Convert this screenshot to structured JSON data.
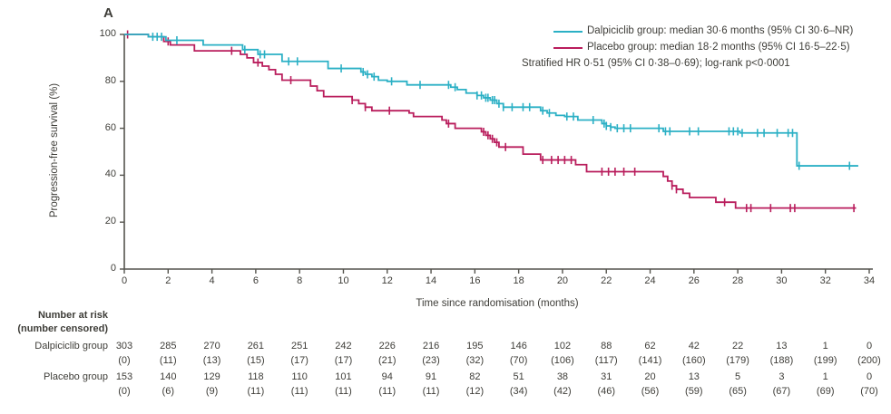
{
  "panel_label": "A",
  "colors": {
    "dalpiciclib": "#2bb0c5",
    "placebo": "#b91d5c",
    "axis": "#55544e",
    "text": "#3e3d38"
  },
  "legend": {
    "items": [
      {
        "label": "Dalpiciclib group: median 30·6 months (95% CI 30·6–NR)",
        "series": "dalpiciclib"
      },
      {
        "label": "Placebo group: median 18·2 months (95% CI 16·5–22·5)",
        "series": "placebo"
      }
    ],
    "note": "Stratified HR 0·51 (95% CI 0·38–0·69); log-rank p<0·0001"
  },
  "chart_data": {
    "type": "line",
    "subtype": "kaplan-meier-step",
    "title": "",
    "xlabel": "Time since randomisation (months)",
    "ylabel": "Progression-free survival (%)",
    "xlim": [
      0,
      34
    ],
    "ylim": [
      0,
      100
    ],
    "xticks": [
      0,
      2,
      4,
      6,
      8,
      10,
      12,
      14,
      16,
      18,
      20,
      22,
      24,
      26,
      28,
      30,
      32,
      34
    ],
    "yticks": [
      0,
      20,
      40,
      60,
      80,
      100
    ],
    "grid": false,
    "legend_position": "top-right",
    "series": [
      {
        "name": "Placebo group",
        "color_key": "placebo",
        "points": [
          [
            0,
            100
          ],
          [
            1.1,
            99
          ],
          [
            1.8,
            97
          ],
          [
            2.1,
            95.5
          ],
          [
            3.2,
            93
          ],
          [
            5.3,
            91.5
          ],
          [
            5.6,
            90
          ],
          [
            5.9,
            88
          ],
          [
            6.3,
            86.5
          ],
          [
            6.6,
            85
          ],
          [
            6.9,
            83
          ],
          [
            7.2,
            80.5
          ],
          [
            8.5,
            78
          ],
          [
            8.8,
            76
          ],
          [
            9.1,
            73.5
          ],
          [
            10.4,
            72
          ],
          [
            10.7,
            70.5
          ],
          [
            11.0,
            69
          ],
          [
            11.3,
            67.5
          ],
          [
            13.0,
            66.5
          ],
          [
            13.2,
            65
          ],
          [
            14.5,
            63.5
          ],
          [
            14.7,
            62
          ],
          [
            15.1,
            60
          ],
          [
            16.3,
            58.5
          ],
          [
            16.5,
            57
          ],
          [
            16.7,
            55.5
          ],
          [
            16.9,
            54
          ],
          [
            17.1,
            52
          ],
          [
            18.2,
            49
          ],
          [
            19.0,
            46.5
          ],
          [
            20.6,
            44.5
          ],
          [
            21.1,
            41.5
          ],
          [
            24.6,
            39.5
          ],
          [
            24.8,
            37.5
          ],
          [
            25.0,
            35.5
          ],
          [
            25.2,
            34
          ],
          [
            25.5,
            32.3
          ],
          [
            25.8,
            30.5
          ],
          [
            27.0,
            28.5
          ],
          [
            27.9,
            26
          ],
          [
            33.4,
            26
          ]
        ],
        "end_month": 33.4,
        "censor_months": [
          0.15,
          2.0,
          4.9,
          6.1,
          7.6,
          10.4,
          11.0,
          12.1,
          14.8,
          16.4,
          16.6,
          16.8,
          17.0,
          17.4,
          19.1,
          19.5,
          19.8,
          20.1,
          20.4,
          21.8,
          22.1,
          22.4,
          22.8,
          23.3,
          25.0,
          25.2,
          27.4,
          28.4,
          28.6,
          29.5,
          30.4,
          30.6,
          33.3
        ]
      },
      {
        "name": "Dalpiciclib group",
        "color_key": "dalpiciclib",
        "points": [
          [
            0,
            100
          ],
          [
            1.1,
            99
          ],
          [
            1.9,
            97.5
          ],
          [
            3.6,
            95.5
          ],
          [
            5.4,
            93.5
          ],
          [
            6.1,
            91.5
          ],
          [
            7.2,
            88.5
          ],
          [
            9.3,
            85.5
          ],
          [
            10.8,
            84
          ],
          [
            11.0,
            83
          ],
          [
            11.3,
            82
          ],
          [
            11.6,
            80.5
          ],
          [
            12.0,
            80
          ],
          [
            12.9,
            78.5
          ],
          [
            14.9,
            77.5
          ],
          [
            15.2,
            76.5
          ],
          [
            15.6,
            75
          ],
          [
            16.1,
            74
          ],
          [
            16.4,
            73
          ],
          [
            16.7,
            72
          ],
          [
            17.0,
            70.5
          ],
          [
            17.3,
            69
          ],
          [
            19.0,
            67.5
          ],
          [
            19.3,
            66.5
          ],
          [
            19.7,
            65.5
          ],
          [
            20.1,
            65
          ],
          [
            20.7,
            63.5
          ],
          [
            21.8,
            62
          ],
          [
            22.0,
            61
          ],
          [
            22.2,
            60.5
          ],
          [
            22.4,
            60
          ],
          [
            24.6,
            58.7
          ],
          [
            28.1,
            58
          ],
          [
            30.7,
            44
          ],
          [
            33.5,
            44
          ]
        ],
        "end_month": 33.5,
        "censor_months": [
          1.3,
          1.5,
          1.7,
          2.4,
          5.5,
          6.2,
          6.4,
          7.5,
          7.9,
          9.9,
          10.9,
          11.1,
          11.4,
          12.2,
          13.5,
          14.8,
          15.1,
          16.1,
          16.3,
          16.5,
          16.6,
          16.8,
          16.9,
          17.1,
          17.3,
          17.7,
          18.2,
          18.5,
          19.1,
          19.4,
          20.2,
          20.5,
          21.4,
          21.9,
          22.0,
          22.2,
          22.5,
          22.8,
          23.1,
          24.4,
          24.7,
          24.9,
          25.8,
          26.2,
          27.6,
          27.8,
          28.0,
          28.2,
          28.9,
          29.2,
          29.8,
          30.3,
          30.5,
          30.8,
          33.1
        ]
      }
    ]
  },
  "risk_table": {
    "header_line1": "Number at risk",
    "header_line2": "(number censored)",
    "months": [
      0,
      2,
      4,
      6,
      8,
      10,
      12,
      14,
      16,
      18,
      20,
      22,
      24,
      26,
      28,
      30,
      32,
      34
    ],
    "rows": [
      {
        "label": "Dalpiciclib group",
        "at_risk": [
          303,
          285,
          270,
          261,
          251,
          242,
          226,
          216,
          195,
          146,
          102,
          88,
          62,
          42,
          22,
          13,
          1,
          0
        ],
        "censored": [
          0,
          11,
          13,
          15,
          17,
          17,
          21,
          23,
          32,
          70,
          106,
          117,
          141,
          160,
          179,
          188,
          199,
          200
        ]
      },
      {
        "label": "Placebo group",
        "at_risk": [
          153,
          140,
          129,
          118,
          110,
          101,
          94,
          91,
          82,
          51,
          38,
          31,
          20,
          13,
          5,
          3,
          1,
          0
        ],
        "censored": [
          0,
          6,
          9,
          11,
          11,
          11,
          11,
          11,
          12,
          34,
          42,
          46,
          56,
          59,
          65,
          67,
          69,
          70
        ]
      }
    ]
  }
}
